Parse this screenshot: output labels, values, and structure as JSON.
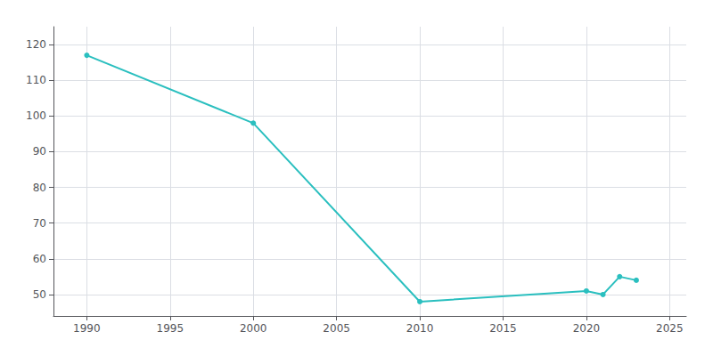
{
  "chart_data": {
    "type": "line",
    "x": [
      1990,
      2000,
      2010,
      2020,
      2021,
      2022,
      2023
    ],
    "values": [
      117,
      98,
      48,
      51,
      50,
      55,
      54
    ],
    "color": "#2abfbf",
    "marker": "circle",
    "xlim": [
      1988,
      2026
    ],
    "ylim": [
      44,
      125
    ],
    "xticks": [
      1990,
      1995,
      2000,
      2005,
      2010,
      2015,
      2020,
      2025
    ],
    "yticks": [
      50,
      60,
      70,
      80,
      90,
      100,
      110,
      120
    ],
    "grid": true
  }
}
